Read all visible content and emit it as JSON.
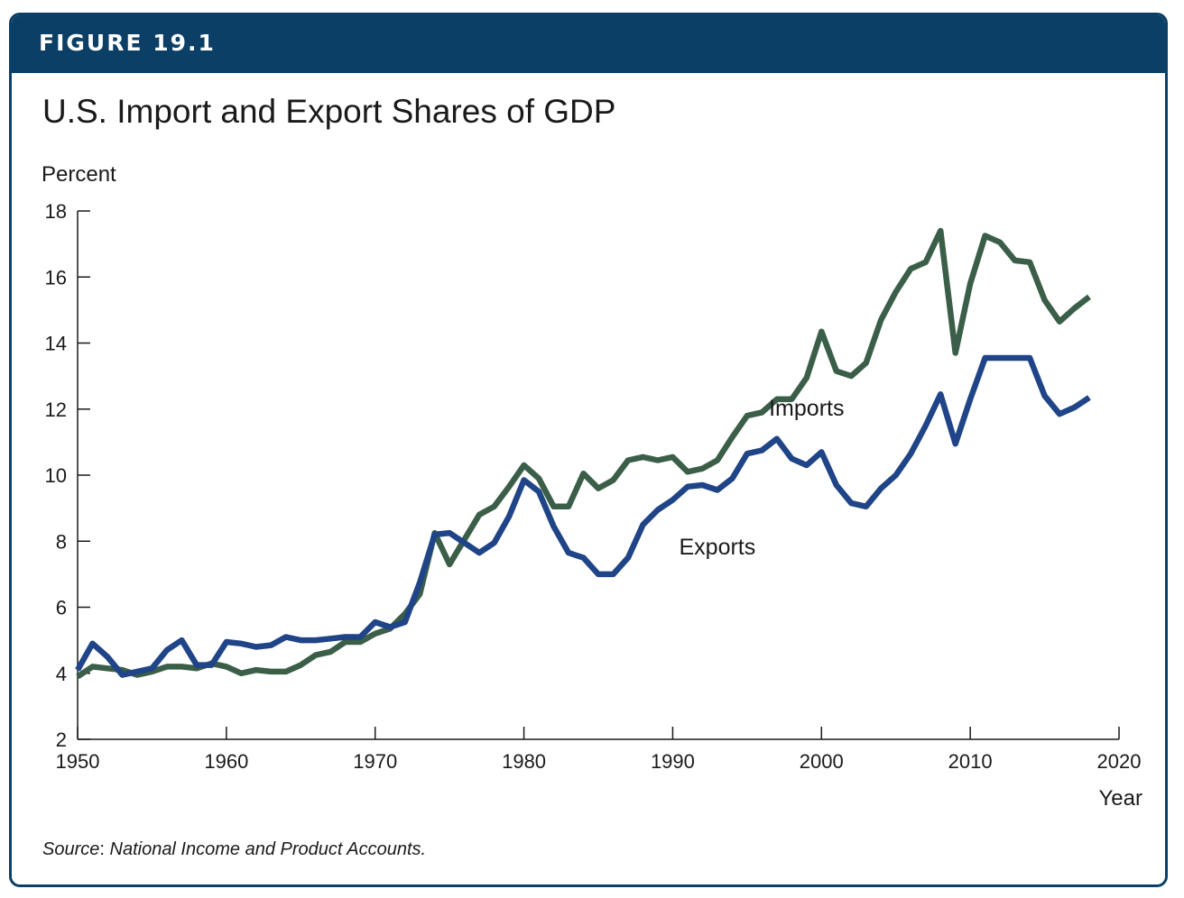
{
  "figure_label": "FIGURE 19.1",
  "source": {
    "label": "Source",
    "separator": ": ",
    "text": "National Income and Product Accounts."
  },
  "chart_data": {
    "type": "line",
    "title": "U.S. Import and Export Shares of GDP",
    "ylabel": "Percent",
    "xlabel": "Year",
    "xlim": [
      1950,
      2020
    ],
    "ylim": [
      2,
      18
    ],
    "xticks": [
      1950,
      1960,
      1970,
      1980,
      1990,
      2000,
      2010,
      2020
    ],
    "yticks": [
      2,
      4,
      6,
      8,
      10,
      12,
      14,
      16,
      18
    ],
    "grid": false,
    "x": [
      1950,
      1951,
      1952,
      1953,
      1954,
      1955,
      1956,
      1957,
      1958,
      1959,
      1960,
      1961,
      1962,
      1963,
      1964,
      1965,
      1966,
      1967,
      1968,
      1969,
      1970,
      1971,
      1972,
      1973,
      1974,
      1975,
      1976,
      1977,
      1978,
      1979,
      1980,
      1981,
      1982,
      1983,
      1984,
      1985,
      1986,
      1987,
      1988,
      1989,
      1990,
      1991,
      1992,
      1993,
      1994,
      1995,
      1996,
      1997,
      1998,
      1999,
      2000,
      2001,
      2002,
      2003,
      2004,
      2005,
      2006,
      2007,
      2008,
      2009,
      2010,
      2011,
      2012,
      2013,
      2014,
      2015,
      2016,
      2017,
      2018
    ],
    "series": [
      {
        "name": "Imports",
        "color": "#3b5e48",
        "values": [
          3.9,
          4.2,
          4.15,
          4.1,
          3.95,
          4.05,
          4.2,
          4.2,
          4.15,
          4.3,
          4.2,
          4.0,
          4.1,
          4.05,
          4.05,
          4.25,
          4.55,
          4.65,
          4.95,
          4.95,
          5.2,
          5.35,
          5.8,
          6.4,
          8.25,
          7.3,
          8.05,
          8.8,
          9.05,
          9.65,
          10.3,
          9.9,
          9.05,
          9.05,
          10.05,
          9.6,
          9.85,
          10.45,
          10.55,
          10.45,
          10.55,
          10.1,
          10.2,
          10.45,
          11.15,
          11.8,
          11.9,
          12.3,
          12.3,
          12.95,
          14.35,
          13.15,
          13.0,
          13.4,
          14.7,
          15.55,
          16.25,
          16.45,
          17.4,
          13.7,
          15.8,
          17.25,
          17.05,
          16.5,
          16.45,
          15.3,
          14.65,
          15.05,
          15.4
        ]
      },
      {
        "name": "Exports",
        "color": "#1f4487",
        "values": [
          4.1,
          4.9,
          4.5,
          3.95,
          4.05,
          4.15,
          4.7,
          5.0,
          4.25,
          4.25,
          4.95,
          4.9,
          4.8,
          4.85,
          5.1,
          5.0,
          5.0,
          5.05,
          5.1,
          5.1,
          5.55,
          5.4,
          5.55,
          6.75,
          8.2,
          8.25,
          7.95,
          7.65,
          7.95,
          8.75,
          9.85,
          9.5,
          8.45,
          7.65,
          7.5,
          7.0,
          7.0,
          7.5,
          8.5,
          8.95,
          9.25,
          9.65,
          9.7,
          9.55,
          9.9,
          10.65,
          10.75,
          11.1,
          10.5,
          10.3,
          10.7,
          9.7,
          9.15,
          9.05,
          9.6,
          10.0,
          10.65,
          11.5,
          12.45,
          10.95,
          12.3,
          13.55,
          13.55,
          13.55,
          13.55,
          12.4,
          11.85,
          12.05,
          12.35
        ]
      }
    ],
    "annotations": [
      {
        "text": "Imports",
        "x": 1999,
        "y": 11.8
      },
      {
        "text": "Exports",
        "x": 1993,
        "y": 7.6
      }
    ]
  }
}
